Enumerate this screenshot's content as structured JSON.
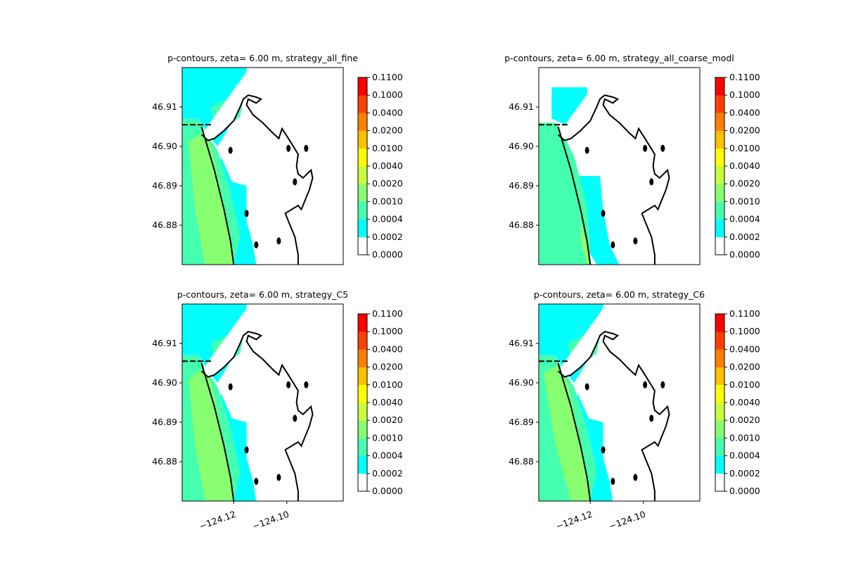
{
  "figure": {
    "colorbar_levels": [
      "0.0000",
      "0.0002",
      "0.0004",
      "0.0010",
      "0.0020",
      "0.0040",
      "0.0100",
      "0.0200",
      "0.0400",
      "0.1000",
      "0.1100"
    ],
    "colorbar_colors": [
      "#ffffff",
      "#00ffff",
      "#44ffb0",
      "#88ff70",
      "#c8ff3c",
      "#ffff00",
      "#ffc000",
      "#ff8000",
      "#ff4000",
      "#ff0000"
    ],
    "y_ticks": [
      "46.91",
      "46.90",
      "46.89",
      "46.88"
    ],
    "x_ticks": [
      "−124.12",
      "−124.10"
    ]
  },
  "chart_data": [
    {
      "type": "heatmap",
      "title": "p-contours, zeta= 6.00 m, strategy_all_fine",
      "ylabel_ticks": [
        "46.91",
        "46.90",
        "46.89",
        "46.88"
      ],
      "x_ticks_shown": false,
      "colorbar": {
        "levels": [
          0.0,
          0.0002,
          0.0004,
          0.001,
          0.002,
          0.004,
          0.01,
          0.02,
          0.04,
          0.1,
          0.11
        ]
      }
    },
    {
      "type": "heatmap",
      "title": "p-contours, zeta= 6.00 m, strategy_all_coarse_modl",
      "ylabel_ticks": [
        "46.91",
        "46.90",
        "46.89",
        "46.88"
      ],
      "x_ticks_shown": false,
      "colorbar": {
        "levels": [
          0.0,
          0.0002,
          0.0004,
          0.001,
          0.002,
          0.004,
          0.01,
          0.02,
          0.04,
          0.1,
          0.11
        ]
      }
    },
    {
      "type": "heatmap",
      "title": "p-contours, zeta= 6.00 m, strategy_C5",
      "ylabel_ticks": [
        "46.91",
        "46.90",
        "46.89",
        "46.88"
      ],
      "xlabel_ticks": [
        -124.12,
        -124.1
      ],
      "colorbar": {
        "levels": [
          0.0,
          0.0002,
          0.0004,
          0.001,
          0.002,
          0.004,
          0.01,
          0.02,
          0.04,
          0.1,
          0.11
        ]
      }
    },
    {
      "type": "heatmap",
      "title": "p-contours, zeta= 6.00 m, strategy_C6",
      "ylabel_ticks": [
        "46.91",
        "46.90",
        "46.89",
        "46.88"
      ],
      "xlabel_ticks": [
        -124.12,
        -124.1
      ],
      "colorbar": {
        "levels": [
          0.0,
          0.0002,
          0.0004,
          0.001,
          0.002,
          0.004,
          0.01,
          0.02,
          0.04,
          0.1,
          0.11
        ]
      }
    }
  ]
}
